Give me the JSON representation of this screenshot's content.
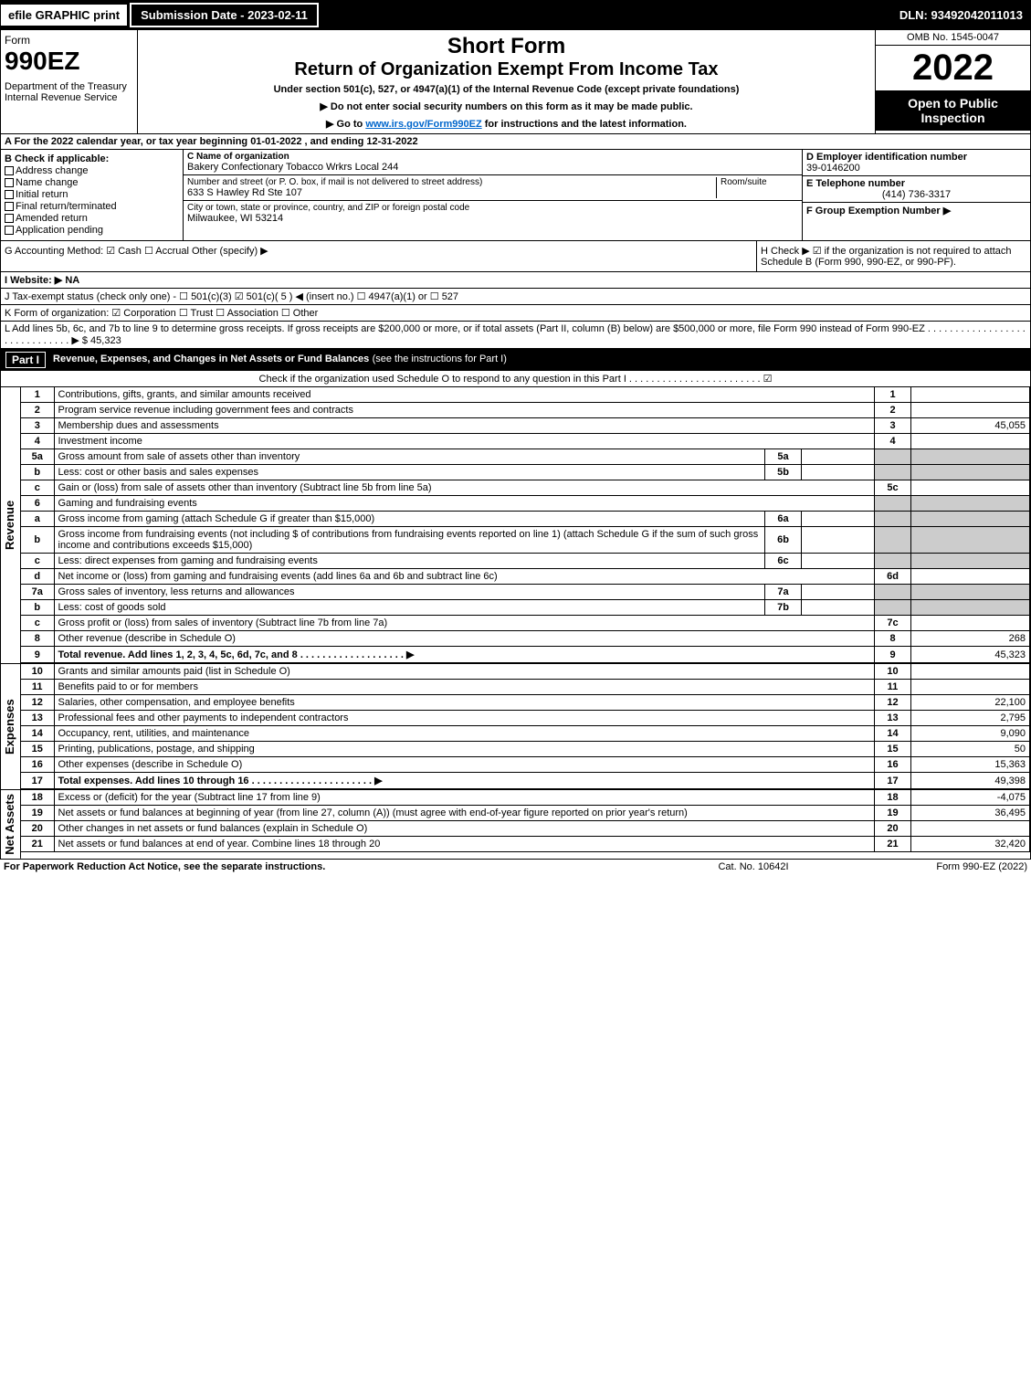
{
  "topbar": {
    "efile": "efile GRAPHIC print",
    "submission": "Submission Date - 2023-02-11",
    "dln": "DLN: 93492042011013"
  },
  "header": {
    "form": "Form",
    "formNum": "990EZ",
    "dept": "Department of the Treasury\nInternal Revenue Service",
    "title1": "Short Form",
    "title2": "Return of Organization Exempt From Income Tax",
    "under": "Under section 501(c), 527, or 4947(a)(1) of the Internal Revenue Code (except private foundations)",
    "note1": "▶ Do not enter social security numbers on this form as it may be made public.",
    "note2": "▶ Go to ",
    "link": "www.irs.gov/Form990EZ",
    "note2b": " for instructions and the latest information.",
    "omb": "OMB No. 1545-0047",
    "year": "2022",
    "open": "Open to Public Inspection"
  },
  "rowA": "A  For the 2022 calendar year, or tax year beginning 01-01-2022 , and ending 12-31-2022",
  "sectionB": {
    "title": "B  Check if applicable:",
    "opts": [
      "Address change",
      "Name change",
      "Initial return",
      "Final return/terminated",
      "Amended return",
      "Application pending"
    ]
  },
  "sectionC": {
    "nameLbl": "C Name of organization",
    "name": "Bakery Confectionary Tobacco Wrkrs Local 244",
    "addrLbl": "Number and street (or P. O. box, if mail is not delivered to street address)",
    "roomLbl": "Room/suite",
    "addr": "633 S Hawley Rd Ste 107",
    "cityLbl": "City or town, state or province, country, and ZIP or foreign postal code",
    "city": "Milwaukee, WI  53214"
  },
  "sectionD": {
    "einLbl": "D Employer identification number",
    "ein": "39-0146200",
    "telLbl": "E Telephone number",
    "tel": "(414) 736-3317",
    "grpLbl": "F Group Exemption Number  ▶"
  },
  "rowG": "G Accounting Method:   ☑ Cash   ☐ Accrual   Other (specify) ▶",
  "rowH": "H  Check ▶ ☑ if the organization is not required to attach Schedule B (Form 990, 990-EZ, or 990-PF).",
  "rowI": "I Website: ▶ NA",
  "rowJ": "J Tax-exempt status (check only one) - ☐ 501(c)(3)  ☑ 501(c)( 5 ) ◀ (insert no.)  ☐ 4947(a)(1) or  ☐ 527",
  "rowK": "K Form of organization:  ☑ Corporation   ☐ Trust   ☐ Association   ☐ Other",
  "rowL": "L Add lines 5b, 6c, and 7b to line 9 to determine gross receipts. If gross receipts are $200,000 or more, or if total assets (Part II, column (B) below) are $500,000 or more, file Form 990 instead of Form 990-EZ  . . . . . . . . . . . . . . . . . . . . . . . . . . . . . .  ▶ $ 45,323",
  "partI": {
    "name": "Part I",
    "title": "Revenue, Expenses, and Changes in Net Assets or Fund Balances",
    "sub": "(see the instructions for Part I)",
    "check": "Check if the organization used Schedule O to respond to any question in this Part I . . . . . . . . . . . . . . . . . . . . . . . . ☑"
  },
  "sidelabels": {
    "revenue": "Revenue",
    "expenses": "Expenses",
    "net": "Net Assets"
  },
  "revenue_rows": [
    {
      "n": "1",
      "d": "Contributions, gifts, grants, and similar amounts received",
      "r": "1",
      "v": ""
    },
    {
      "n": "2",
      "d": "Program service revenue including government fees and contracts",
      "r": "2",
      "v": ""
    },
    {
      "n": "3",
      "d": "Membership dues and assessments",
      "r": "3",
      "v": "45,055"
    },
    {
      "n": "4",
      "d": "Investment income",
      "r": "4",
      "v": ""
    },
    {
      "n": "5a",
      "d": "Gross amount from sale of assets other than inventory",
      "sub": "5a",
      "subv": "",
      "gray": true
    },
    {
      "n": "b",
      "d": "Less: cost or other basis and sales expenses",
      "sub": "5b",
      "subv": "",
      "gray": true
    },
    {
      "n": "c",
      "d": "Gain or (loss) from sale of assets other than inventory (Subtract line 5b from line 5a)",
      "r": "5c",
      "v": ""
    },
    {
      "n": "6",
      "d": "Gaming and fundraising events",
      "gray": true,
      "noval": true
    },
    {
      "n": "a",
      "d": "Gross income from gaming (attach Schedule G if greater than $15,000)",
      "sub": "6a",
      "subv": "",
      "gray": true
    },
    {
      "n": "b",
      "d": "Gross income from fundraising events (not including $                     of contributions from fundraising events reported on line 1) (attach Schedule G if the sum of such gross income and contributions exceeds $15,000)",
      "sub": "6b",
      "subv": "",
      "gray": true
    },
    {
      "n": "c",
      "d": "Less: direct expenses from gaming and fundraising events",
      "sub": "6c",
      "subv": "",
      "gray": true
    },
    {
      "n": "d",
      "d": "Net income or (loss) from gaming and fundraising events (add lines 6a and 6b and subtract line 6c)",
      "r": "6d",
      "v": ""
    },
    {
      "n": "7a",
      "d": "Gross sales of inventory, less returns and allowances",
      "sub": "7a",
      "subv": "",
      "gray": true
    },
    {
      "n": "b",
      "d": "Less: cost of goods sold",
      "sub": "7b",
      "subv": "",
      "gray": true
    },
    {
      "n": "c",
      "d": "Gross profit or (loss) from sales of inventory (Subtract line 7b from line 7a)",
      "r": "7c",
      "v": ""
    },
    {
      "n": "8",
      "d": "Other revenue (describe in Schedule O)",
      "r": "8",
      "v": "268"
    },
    {
      "n": "9",
      "d": "Total revenue. Add lines 1, 2, 3, 4, 5c, 6d, 7c, and 8   . . . . . . . . . . . . . . . . . . .  ▶",
      "r": "9",
      "v": "45,323",
      "bold": true
    }
  ],
  "expense_rows": [
    {
      "n": "10",
      "d": "Grants and similar amounts paid (list in Schedule O)",
      "r": "10",
      "v": ""
    },
    {
      "n": "11",
      "d": "Benefits paid to or for members",
      "r": "11",
      "v": ""
    },
    {
      "n": "12",
      "d": "Salaries, other compensation, and employee benefits",
      "r": "12",
      "v": "22,100"
    },
    {
      "n": "13",
      "d": "Professional fees and other payments to independent contractors",
      "r": "13",
      "v": "2,795"
    },
    {
      "n": "14",
      "d": "Occupancy, rent, utilities, and maintenance",
      "r": "14",
      "v": "9,090"
    },
    {
      "n": "15",
      "d": "Printing, publications, postage, and shipping",
      "r": "15",
      "v": "50"
    },
    {
      "n": "16",
      "d": "Other expenses (describe in Schedule O)",
      "r": "16",
      "v": "15,363"
    },
    {
      "n": "17",
      "d": "Total expenses. Add lines 10 through 16   . . . . . . . . . . . . . . . . . . . . . .  ▶",
      "r": "17",
      "v": "49,398",
      "bold": true
    }
  ],
  "net_rows": [
    {
      "n": "18",
      "d": "Excess or (deficit) for the year (Subtract line 17 from line 9)",
      "r": "18",
      "v": "-4,075"
    },
    {
      "n": "19",
      "d": "Net assets or fund balances at beginning of year (from line 27, column (A)) (must agree with end-of-year figure reported on prior year's return)",
      "r": "19",
      "v": "36,495"
    },
    {
      "n": "20",
      "d": "Other changes in net assets or fund balances (explain in Schedule O)",
      "r": "20",
      "v": ""
    },
    {
      "n": "21",
      "d": "Net assets or fund balances at end of year. Combine lines 18 through 20",
      "r": "21",
      "v": "32,420"
    }
  ],
  "footer": {
    "left": "For Paperwork Reduction Act Notice, see the separate instructions.",
    "center": "Cat. No. 10642I",
    "right": "Form 990-EZ (2022)"
  }
}
